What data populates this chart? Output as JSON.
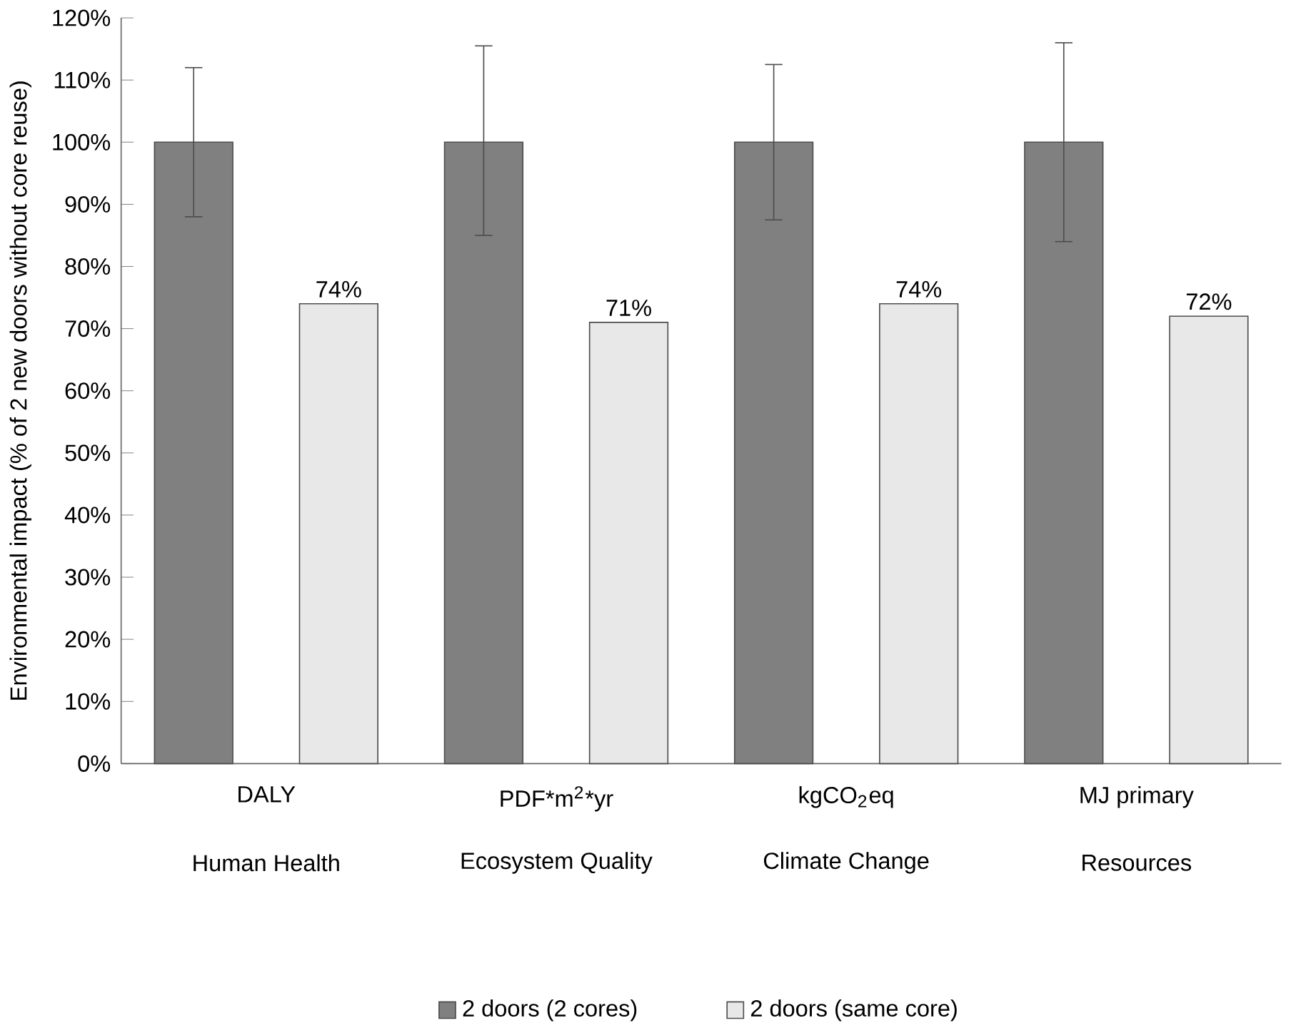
{
  "chart_data": {
    "type": "bar",
    "ylabel": "Environmental impact (% of 2 new doors without core reuse)",
    "categories": [
      "DALY",
      "PDF*m$^{2}$*yr",
      "kgCO$_{2}$eq",
      "MJ primary"
    ],
    "annotations": [
      "Human Health",
      "Ecosystem Quality",
      "Climate Change",
      "Resources"
    ],
    "series": [
      {
        "name": "2 doors (2 cores)",
        "color": "#808080",
        "values": [
          100,
          100,
          100,
          100
        ],
        "errors": [
          [
            88,
            112
          ],
          [
            85,
            115.5
          ],
          [
            87.5,
            112.5
          ],
          [
            84,
            116
          ]
        ]
      },
      {
        "name": "2 doors (same core)",
        "color": "#e8e8e8",
        "values": [
          74,
          71,
          74,
          72
        ],
        "value_labels": [
          "74%",
          "71%",
          "74%",
          "72%"
        ]
      }
    ],
    "ylim": [
      0,
      120
    ],
    "yticks": [
      {
        "value": 0,
        "label": "0%"
      },
      {
        "value": 10,
        "label": "10%"
      },
      {
        "value": 20,
        "label": "20%"
      },
      {
        "value": 30,
        "label": "30%"
      },
      {
        "value": 40,
        "label": "40%"
      },
      {
        "value": 50,
        "label": "50%"
      },
      {
        "value": 60,
        "label": "60%"
      },
      {
        "value": 70,
        "label": "70%"
      },
      {
        "value": 80,
        "label": "80%"
      },
      {
        "value": 90,
        "label": "90%"
      },
      {
        "value": 100,
        "label": "100%"
      },
      {
        "value": 110,
        "label": "110%"
      },
      {
        "value": 120,
        "label": "120%"
      }
    ],
    "legend": "bottom",
    "grid": false
  }
}
